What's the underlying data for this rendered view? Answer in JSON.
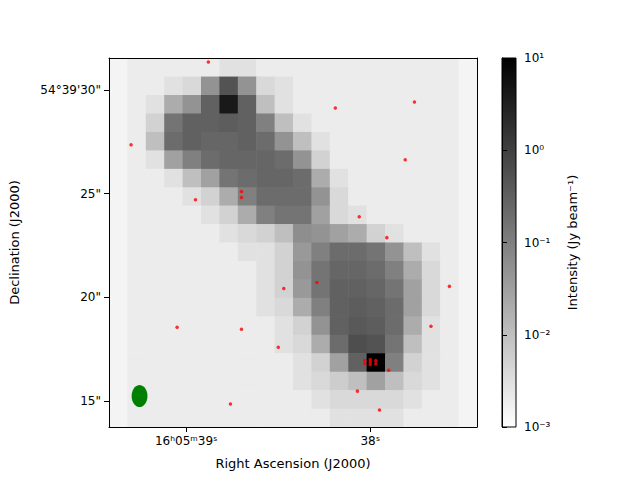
{
  "chart_data": {
    "type": "image",
    "xlabel": "Right Ascension (J2000)",
    "ylabel": "Declination (J2000)",
    "xlim": [
      39.42,
      37.42
    ],
    "ylim": [
      13.75,
      31.54
    ],
    "xticks": [
      {
        "value": 39,
        "label": "16ʰ05ᵐ39ˢ"
      },
      {
        "value": 38,
        "label": "38ˢ"
      }
    ],
    "yticks": [
      {
        "value": 15,
        "label": "15\""
      },
      {
        "value": 20,
        "label": "20\""
      },
      {
        "value": 25,
        "label": "25\""
      },
      {
        "value": 30,
        "label": "54°39'30\""
      }
    ],
    "image": {
      "x": [
        39.37,
        39.27,
        39.17,
        39.07,
        38.97,
        38.87,
        38.77,
        38.67,
        38.57,
        38.47,
        38.37,
        38.27,
        38.17,
        38.07,
        37.97,
        37.87,
        37.77,
        37.67,
        37.57,
        37.47
      ],
      "y": [
        31.09,
        30.2,
        29.31,
        28.42,
        27.53,
        26.64,
        25.75,
        24.86,
        23.98,
        23.09,
        22.2,
        21.31,
        20.42,
        19.53,
        18.64,
        17.75,
        16.86,
        15.97,
        15.08,
        14.19
      ],
      "values": [
        [
          0.0015,
          0.002,
          0.002,
          0.002,
          0.002,
          0.002,
          0.003,
          0.003,
          0.002,
          0.002,
          0.002,
          0.002,
          0.002,
          0.002,
          0.002,
          0.002,
          0.002,
          0.002,
          0.002,
          0.0015
        ],
        [
          0.0015,
          0.002,
          0.002,
          0.003,
          0.004,
          0.05,
          0.5,
          0.05,
          0.004,
          0.003,
          0.002,
          0.002,
          0.002,
          0.002,
          0.002,
          0.002,
          0.002,
          0.002,
          0.002,
          0.0015
        ],
        [
          0.0015,
          0.002,
          0.003,
          0.02,
          0.05,
          0.3,
          4,
          0.3,
          0.01,
          0.003,
          0.002,
          0.002,
          0.002,
          0.002,
          0.002,
          0.002,
          0.002,
          0.002,
          0.002,
          0.0015
        ],
        [
          0.0015,
          0.002,
          0.005,
          0.15,
          0.3,
          0.3,
          0.35,
          0.3,
          0.1,
          0.01,
          0.003,
          0.002,
          0.002,
          0.002,
          0.002,
          0.002,
          0.002,
          0.002,
          0.002,
          0.0015
        ],
        [
          0.0015,
          0.002,
          0.01,
          0.2,
          0.3,
          0.25,
          0.25,
          0.3,
          0.2,
          0.05,
          0.01,
          0.003,
          0.002,
          0.002,
          0.002,
          0.002,
          0.002,
          0.002,
          0.002,
          0.0015
        ],
        [
          0.0015,
          0.002,
          0.003,
          0.03,
          0.1,
          0.2,
          0.25,
          0.25,
          0.25,
          0.2,
          0.05,
          0.005,
          0.002,
          0.002,
          0.002,
          0.002,
          0.002,
          0.002,
          0.002,
          0.0015
        ],
        [
          0.0015,
          0.002,
          0.002,
          0.003,
          0.01,
          0.03,
          0.15,
          0.2,
          0.25,
          0.25,
          0.2,
          0.02,
          0.003,
          0.002,
          0.002,
          0.002,
          0.002,
          0.002,
          0.002,
          0.0015
        ],
        [
          0.0015,
          0.002,
          0.002,
          0.002,
          0.003,
          0.005,
          0.02,
          0.1,
          0.2,
          0.2,
          0.2,
          0.05,
          0.004,
          0.002,
          0.002,
          0.002,
          0.002,
          0.002,
          0.002,
          0.0015
        ],
        [
          0.0015,
          0.002,
          0.002,
          0.002,
          0.002,
          0.003,
          0.005,
          0.02,
          0.1,
          0.15,
          0.15,
          0.03,
          0.004,
          0.003,
          0.002,
          0.002,
          0.002,
          0.002,
          0.002,
          0.0015
        ],
        [
          0.0015,
          0.002,
          0.002,
          0.002,
          0.002,
          0.002,
          0.003,
          0.004,
          0.005,
          0.01,
          0.06,
          0.05,
          0.03,
          0.02,
          0.005,
          0.003,
          0.002,
          0.002,
          0.002,
          0.0015
        ],
        [
          0.0015,
          0.002,
          0.002,
          0.002,
          0.002,
          0.002,
          0.002,
          0.003,
          0.003,
          0.005,
          0.04,
          0.1,
          0.2,
          0.2,
          0.15,
          0.05,
          0.01,
          0.003,
          0.002,
          0.0015
        ],
        [
          0.0015,
          0.002,
          0.002,
          0.002,
          0.002,
          0.002,
          0.002,
          0.002,
          0.003,
          0.005,
          0.05,
          0.15,
          0.25,
          0.25,
          0.2,
          0.1,
          0.02,
          0.004,
          0.002,
          0.0015
        ],
        [
          0.0015,
          0.002,
          0.002,
          0.002,
          0.002,
          0.002,
          0.002,
          0.002,
          0.003,
          0.005,
          0.04,
          0.15,
          0.3,
          0.3,
          0.25,
          0.15,
          0.03,
          0.004,
          0.002,
          0.0015
        ],
        [
          0.0015,
          0.002,
          0.002,
          0.002,
          0.002,
          0.002,
          0.002,
          0.002,
          0.003,
          0.004,
          0.02,
          0.1,
          0.3,
          0.35,
          0.3,
          0.2,
          0.03,
          0.004,
          0.002,
          0.0015
        ],
        [
          0.0015,
          0.002,
          0.002,
          0.002,
          0.002,
          0.002,
          0.002,
          0.002,
          0.002,
          0.003,
          0.005,
          0.05,
          0.3,
          0.4,
          0.35,
          0.2,
          0.02,
          0.003,
          0.002,
          0.0015
        ],
        [
          0.0015,
          0.002,
          0.002,
          0.002,
          0.002,
          0.002,
          0.002,
          0.002,
          0.002,
          0.003,
          0.004,
          0.02,
          0.2,
          0.6,
          0.5,
          0.15,
          0.01,
          0.003,
          0.002,
          0.0015
        ],
        [
          0.0015,
          0.002,
          0.002,
          0.002,
          0.002,
          0.002,
          0.002,
          0.002,
          0.002,
          0.002,
          0.003,
          0.005,
          0.03,
          0.3,
          10,
          0.1,
          0.005,
          0.003,
          0.002,
          0.0015
        ],
        [
          0.0015,
          0.002,
          0.002,
          0.002,
          0.002,
          0.002,
          0.002,
          0.002,
          0.002,
          0.002,
          0.003,
          0.004,
          0.006,
          0.01,
          0.03,
          0.01,
          0.004,
          0.003,
          0.002,
          0.0015
        ],
        [
          0.0015,
          0.002,
          0.002,
          0.002,
          0.002,
          0.002,
          0.002,
          0.002,
          0.002,
          0.002,
          0.002,
          0.003,
          0.004,
          0.004,
          0.004,
          0.004,
          0.003,
          0.002,
          0.002,
          0.0015
        ],
        [
          0.0015,
          0.002,
          0.002,
          0.002,
          0.002,
          0.002,
          0.002,
          0.002,
          0.002,
          0.002,
          0.002,
          0.002,
          0.003,
          0.003,
          0.003,
          0.003,
          0.002,
          0.002,
          0.002,
          0.0015
        ]
      ]
    },
    "colorbar": {
      "label": "Intensity (Jy beam⁻¹)",
      "range": [
        0.001,
        10
      ],
      "log": true,
      "colors": [
        "#ffffff",
        "#000000"
      ],
      "ticks": [
        {
          "value": 0.001,
          "label": "10⁻³"
        },
        {
          "value": 0.01,
          "label": "10⁻²"
        },
        {
          "value": 0.1,
          "label": "10⁻¹"
        },
        {
          "value": 1,
          "label": "10⁰"
        },
        {
          "value": 10,
          "label": "10¹"
        }
      ]
    },
    "contours": {
      "color": "red",
      "points": [
        [
          38.0,
          16.88
        ],
        [
          37.97,
          16.95
        ],
        [
          38.03,
          16.8
        ],
        [
          38.0,
          17.0
        ],
        [
          38.03,
          16.95
        ],
        [
          37.97,
          16.8
        ],
        [
          38.0,
          16.76
        ],
        [
          39.3,
          27.36
        ],
        [
          38.88,
          31.35
        ],
        [
          38.7,
          25.1
        ],
        [
          38.7,
          24.81
        ],
        [
          38.95,
          24.71
        ],
        [
          38.19,
          29.13
        ],
        [
          38.06,
          23.89
        ],
        [
          37.91,
          22.88
        ],
        [
          37.76,
          29.42
        ],
        [
          37.81,
          26.63
        ],
        [
          38.47,
          20.43
        ],
        [
          38.29,
          20.72
        ],
        [
          37.57,
          20.53
        ],
        [
          37.67,
          18.61
        ],
        [
          37.9,
          16.49
        ],
        [
          38.07,
          15.48
        ],
        [
          37.95,
          14.57
        ],
        [
          38.5,
          17.6
        ],
        [
          38.76,
          14.86
        ],
        [
          39.05,
          18.56
        ],
        [
          38.7,
          18.46
        ]
      ]
    },
    "beam": {
      "x": 39.254,
      "y": 15.24,
      "width": 0.086,
      "height": 1.06,
      "color": "green"
    }
  }
}
